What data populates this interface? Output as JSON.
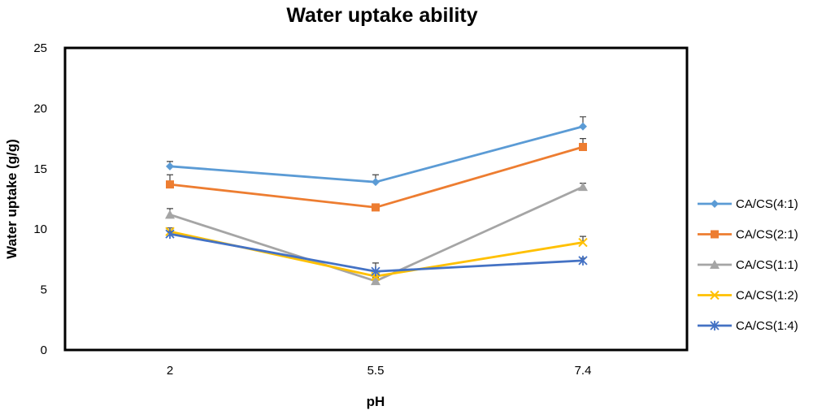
{
  "chart_data": {
    "type": "line",
    "title": "Water uptake ability",
    "xlabel": "pH",
    "ylabel": "Water uptake  (g/g)",
    "categories": [
      "2",
      "5.5",
      "7.4"
    ],
    "ylim": [
      0,
      25
    ],
    "yticks": [
      0,
      5,
      10,
      15,
      20,
      25
    ],
    "grid": false,
    "legend_position": "right",
    "series": [
      {
        "name": "CA/CS(4:1)",
        "color": "#5b9bd5",
        "marker": "diamond",
        "values": [
          15.2,
          13.9,
          18.5
        ],
        "errors": [
          0.4,
          0.6,
          0.8
        ]
      },
      {
        "name": "CA/CS(2:1)",
        "color": "#ed7d31",
        "marker": "square",
        "values": [
          13.7,
          11.8,
          16.8
        ],
        "errors": [
          0.8,
          0.2,
          0.7
        ]
      },
      {
        "name": "CA/CS(1:1)",
        "color": "#a5a5a5",
        "marker": "triangle",
        "values": [
          11.2,
          5.7,
          13.5
        ],
        "errors": [
          0.5,
          0.3,
          0.3
        ]
      },
      {
        "name": "CA/CS(1:2)",
        "color": "#ffc000",
        "marker": "x",
        "values": [
          9.8,
          6.1,
          8.9
        ],
        "errors": [
          0.3,
          0.4,
          0.5
        ]
      },
      {
        "name": "CA/CS(1:4)",
        "color": "#4472c4",
        "marker": "star",
        "values": [
          9.6,
          6.5,
          7.4
        ],
        "errors": [
          0.2,
          0.7,
          0.2
        ]
      }
    ]
  }
}
